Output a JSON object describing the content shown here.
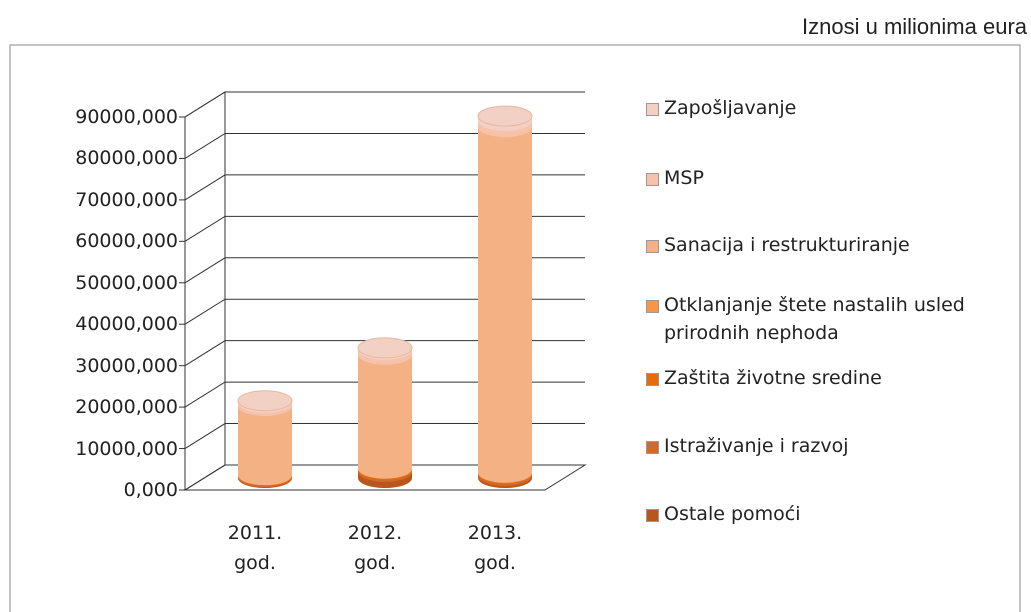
{
  "chart_data": {
    "type": "bar",
    "stacked": true,
    "note": "Iznosi u milionima eura",
    "categories": [
      "2011. god.",
      "2012. god.",
      "2013. god."
    ],
    "series": [
      {
        "name": "Zapošljavanje",
        "color": "#f2d0c4",
        "values": [
          500,
          500,
          1200
        ]
      },
      {
        "name": "MSP",
        "color": "#f6c2ac",
        "values": [
          800,
          1200,
          1500
        ]
      },
      {
        "name": "Sanacija i restrukturiranje",
        "color": "#f4b183",
        "values": [
          17000,
          28000,
          85000
        ]
      },
      {
        "name": "Otklanjanje štete nastalih usled prirodnih nephoda",
        "color": "#f79646",
        "values": [
          0,
          0,
          0
        ]
      },
      {
        "name": "Zaštita životne sredine",
        "color": "#e46c0a",
        "values": [
          200,
          300,
          300
        ]
      },
      {
        "name": "Istraživanje i razvoj",
        "color": "#d2692a",
        "values": [
          300,
          500,
          500
        ]
      },
      {
        "name": "Ostale pomoći",
        "color": "#b8561c",
        "values": [
          200,
          1500,
          500
        ]
      }
    ],
    "ylim": [
      0,
      90000
    ],
    "yticks": [
      {
        "value": 0,
        "label": "0,000"
      },
      {
        "value": 10000,
        "label": "10000,000"
      },
      {
        "value": 20000,
        "label": "20000,000"
      },
      {
        "value": 30000,
        "label": "30000,000"
      },
      {
        "value": 40000,
        "label": "40000,000"
      },
      {
        "value": 50000,
        "label": "50000,000"
      },
      {
        "value": 60000,
        "label": "60000,000"
      },
      {
        "value": 70000,
        "label": "70000,000"
      },
      {
        "value": 80000,
        "label": "80000,000"
      },
      {
        "value": 90000,
        "label": "90000,000"
      }
    ],
    "grid": true
  }
}
